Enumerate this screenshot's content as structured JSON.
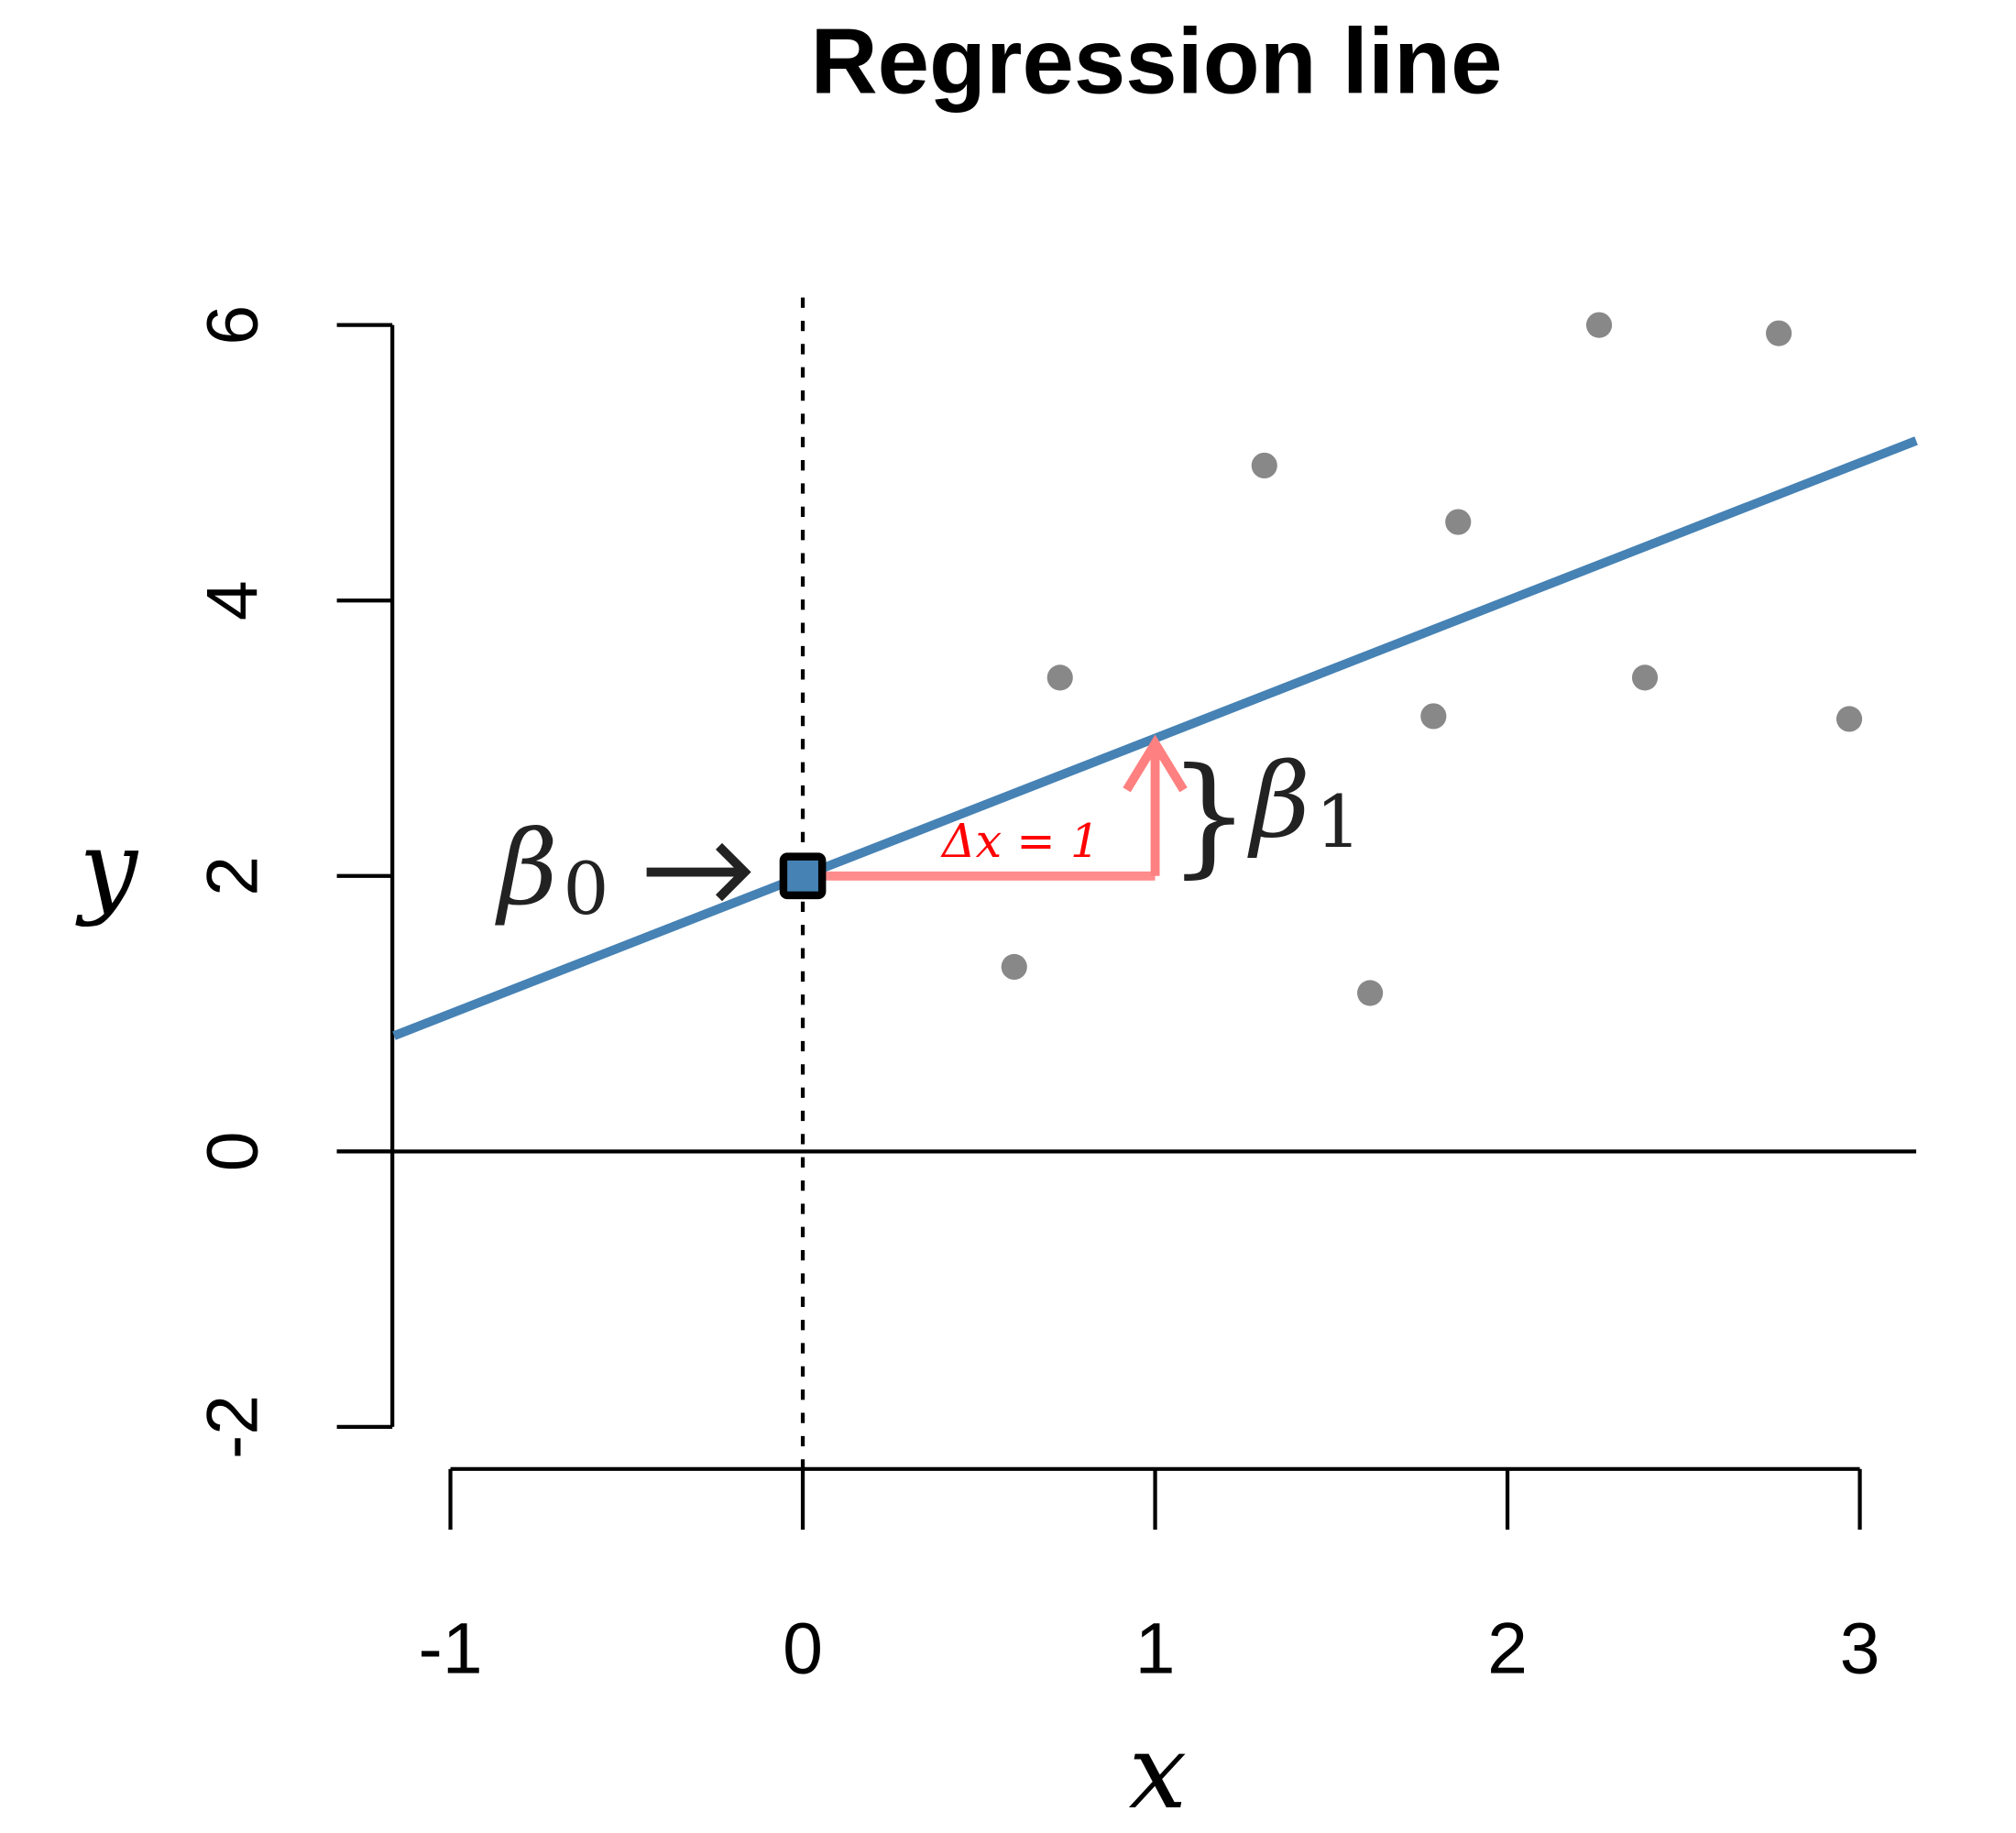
{
  "chart_data": {
    "type": "scatter",
    "title": "Regression line",
    "xlabel": "x",
    "ylabel": "y",
    "xlim": [
      -1.16,
      3.16
    ],
    "ylim": [
      -2.3,
      6.2
    ],
    "xticks": [
      -1,
      0,
      1,
      2,
      3
    ],
    "yticks": [
      -2,
      0,
      2,
      4,
      6
    ],
    "xtick_labels": [
      "-1",
      "0",
      "1",
      "2",
      "3"
    ],
    "ytick_labels": [
      "-2",
      "0",
      "2",
      "4",
      "6"
    ],
    "grid": false,
    "points": {
      "x": [
        0.6,
        0.73,
        1.31,
        1.61,
        1.79,
        1.86,
        2.26,
        2.39,
        2.77,
        2.97
      ],
      "y": [
        1.34,
        3.44,
        4.98,
        1.15,
        3.16,
        4.57,
        6.0,
        3.44,
        5.94,
        3.14
      ],
      "color": "#888888"
    },
    "regression_line": {
      "intercept": 2,
      "slope": 1,
      "color": "#4682B4"
    },
    "intercept_marker": {
      "x": 0,
      "y": 2
    },
    "annotations": {
      "beta0": "β",
      "beta0_sub": "0",
      "beta1": "β",
      "beta1_sub": "1",
      "delta_label": "Δx = 1",
      "brace": "}",
      "delta_color": "#FF0000",
      "arrow_color": "#FF8080"
    }
  }
}
